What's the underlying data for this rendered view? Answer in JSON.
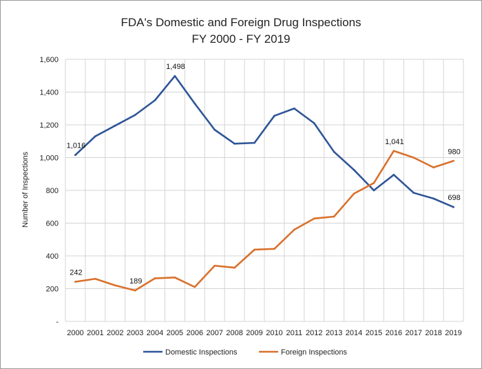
{
  "chart_data": {
    "type": "line",
    "title_line1": "FDA's Domestic and Foreign Drug Inspections",
    "title_line2": "FY 2000 - FY 2019",
    "ylabel": "Number of Inspections",
    "xlabel": "",
    "ylim": [
      0,
      1600
    ],
    "yticks": [
      {
        "value": 0,
        "label": "-"
      },
      {
        "value": 200,
        "label": "200"
      },
      {
        "value": 400,
        "label": "400"
      },
      {
        "value": 600,
        "label": "600"
      },
      {
        "value": 800,
        "label": "800"
      },
      {
        "value": 1000,
        "label": "1,000"
      },
      {
        "value": 1200,
        "label": "1,200"
      },
      {
        "value": 1400,
        "label": "1,400"
      },
      {
        "value": 1600,
        "label": "1,600"
      }
    ],
    "categories": [
      "2000",
      "2001",
      "2002",
      "2003",
      "2004",
      "2005",
      "2006",
      "2007",
      "2008",
      "2009",
      "2010",
      "2011",
      "2012",
      "2013",
      "2014",
      "2015",
      "2016",
      "2017",
      "2018",
      "2019"
    ],
    "grid": true,
    "legend_position": "bottom",
    "series": [
      {
        "name": "Domestic Inspections",
        "color": "#2f5597",
        "values": [
          1016,
          1130,
          1195,
          1260,
          1350,
          1498,
          1330,
          1170,
          1085,
          1090,
          1255,
          1300,
          1210,
          1035,
          925,
          800,
          895,
          785,
          750,
          698
        ],
        "labels": [
          {
            "index": 0,
            "text": "1,016"
          },
          {
            "index": 5,
            "text": "1,498"
          },
          {
            "index": 19,
            "text": "698"
          }
        ]
      },
      {
        "name": "Foreign Inspections",
        "color": "#d9712c",
        "values": [
          242,
          260,
          220,
          189,
          263,
          268,
          210,
          340,
          328,
          438,
          443,
          560,
          628,
          640,
          780,
          845,
          1041,
          1000,
          940,
          980
        ],
        "labels": [
          {
            "index": 0,
            "text": "242"
          },
          {
            "index": 3,
            "text": "189"
          },
          {
            "index": 16,
            "text": "1,041"
          },
          {
            "index": 19,
            "text": "980"
          }
        ]
      }
    ]
  }
}
